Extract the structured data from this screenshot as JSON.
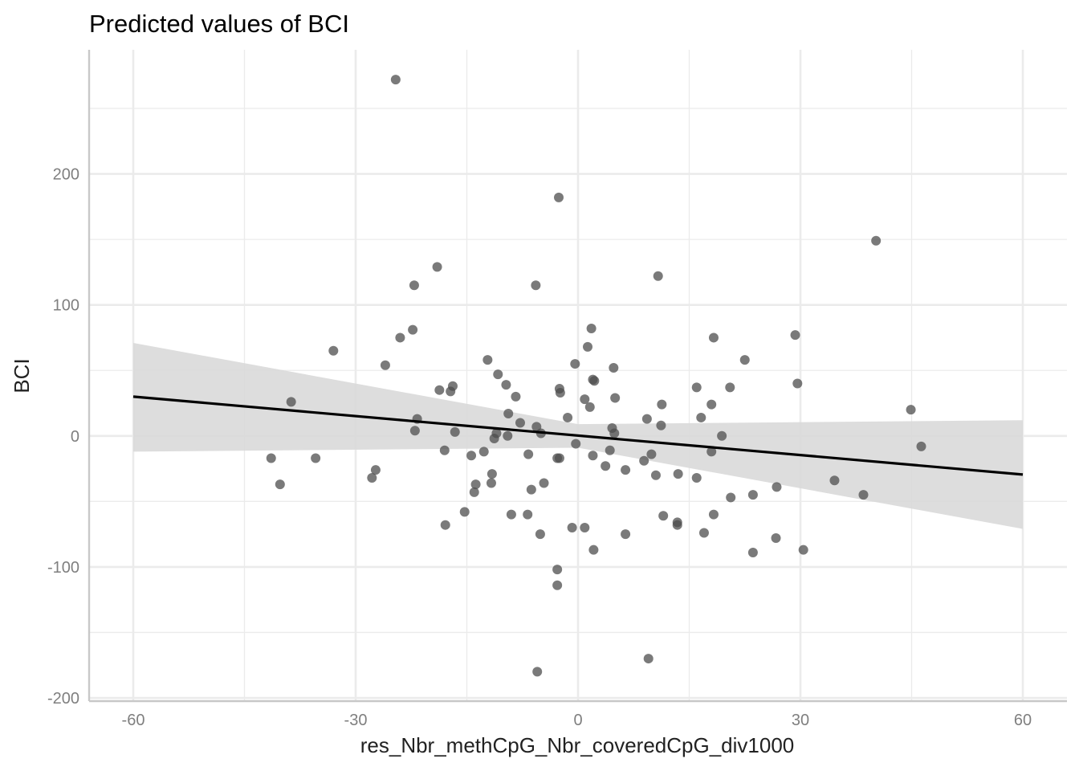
{
  "chart_data": {
    "type": "scatter",
    "title": "Predicted values of BCI",
    "xlabel": "res_Nbr_methCpG_Nbr_coveredCpG_div1000",
    "ylabel": "BCI",
    "xlim": [
      -60,
      60
    ],
    "ylim": [
      -200,
      285
    ],
    "x_ticks": [
      -60,
      -30,
      0,
      30,
      60
    ],
    "x_tick_labels": [
      "-60",
      "-30",
      "0",
      "30",
      "60"
    ],
    "y_ticks": [
      -200,
      -100,
      0,
      100,
      200
    ],
    "y_tick_labels": [
      "-200",
      "-100",
      "0",
      "100",
      "200"
    ],
    "grid": true,
    "legend": "none",
    "colors": {
      "point": "#4d4d4d",
      "line": "#000000",
      "ribbon": "#d9d9d9",
      "grid": "#ebebeb",
      "axis_text": "#7f7f7f",
      "title": "#000000"
    },
    "fit_line": {
      "x": [
        -60,
        60
      ],
      "y": [
        30,
        -29.5
      ]
    },
    "confidence_band": {
      "x": [
        -60,
        0,
        60
      ],
      "upper": [
        71,
        9,
        12
      ],
      "lower": [
        -12,
        -9,
        -71
      ]
    },
    "points": [
      [
        -24.6,
        272
      ],
      [
        -2.6,
        182
      ],
      [
        -19,
        129
      ],
      [
        -22.1,
        115
      ],
      [
        -5.7,
        115
      ],
      [
        10.8,
        122
      ],
      [
        40.2,
        149
      ],
      [
        -22.3,
        81
      ],
      [
        -24,
        75
      ],
      [
        1.8,
        82
      ],
      [
        18.3,
        75
      ],
      [
        29.3,
        77
      ],
      [
        -33,
        65
      ],
      [
        -26,
        54
      ],
      [
        -12.2,
        58
      ],
      [
        -10.8,
        47
      ],
      [
        -0.4,
        55
      ],
      [
        1.3,
        68
      ],
      [
        22.5,
        58
      ],
      [
        2.0,
        43
      ],
      [
        2.2,
        42
      ],
      [
        4.8,
        52
      ],
      [
        -18.7,
        35
      ],
      [
        -16.9,
        38
      ],
      [
        -17.2,
        34
      ],
      [
        -2.5,
        36
      ],
      [
        -2.4,
        33
      ],
      [
        -8.4,
        30
      ],
      [
        -9.7,
        39
      ],
      [
        0.9,
        28
      ],
      [
        1.6,
        22
      ],
      [
        5.0,
        29
      ],
      [
        11.3,
        24
      ],
      [
        16.0,
        37
      ],
      [
        18.0,
        24
      ],
      [
        20.5,
        37
      ],
      [
        29.6,
        40
      ],
      [
        -38.7,
        26
      ],
      [
        -21.7,
        13
      ],
      [
        -22,
        4
      ],
      [
        -16.6,
        3
      ],
      [
        -9.4,
        17
      ],
      [
        -7.8,
        10
      ],
      [
        -5.6,
        7
      ],
      [
        -5.0,
        2
      ],
      [
        -1.4,
        14
      ],
      [
        4.6,
        6
      ],
      [
        4.9,
        2
      ],
      [
        9.3,
        13
      ],
      [
        11.2,
        8
      ],
      [
        16.6,
        14
      ],
      [
        19.4,
        0
      ],
      [
        44.9,
        20
      ],
      [
        46.3,
        -8
      ],
      [
        -11,
        2
      ],
      [
        -11.3,
        -2
      ],
      [
        -9.5,
        0
      ],
      [
        -0.3,
        -6
      ],
      [
        -12.7,
        -12
      ],
      [
        -14.4,
        -15
      ],
      [
        -18,
        -11
      ],
      [
        -6.7,
        -14
      ],
      [
        -2.5,
        -17
      ],
      [
        -2.8,
        -17
      ],
      [
        2.0,
        -15
      ],
      [
        4.3,
        -11
      ],
      [
        9.9,
        -14
      ],
      [
        8.9,
        -19
      ],
      [
        6.4,
        -26
      ],
      [
        3.7,
        -23
      ],
      [
        10.5,
        -30
      ],
      [
        13.5,
        -29
      ],
      [
        16.0,
        -32
      ],
      [
        18.0,
        -12
      ],
      [
        -41.4,
        -17
      ],
      [
        -35.4,
        -17
      ],
      [
        -27.3,
        -26
      ],
      [
        -27.8,
        -32
      ],
      [
        -40.2,
        -37
      ],
      [
        -11.6,
        -29
      ],
      [
        -11.7,
        -36
      ],
      [
        -13.8,
        -37
      ],
      [
        -14,
        -43
      ],
      [
        -6.3,
        -41
      ],
      [
        -4.6,
        -36
      ],
      [
        -15.3,
        -58
      ],
      [
        -9.0,
        -60
      ],
      [
        -6.8,
        -60
      ],
      [
        -17.9,
        -68
      ],
      [
        -5.1,
        -75
      ],
      [
        -0.8,
        -70
      ],
      [
        0.9,
        -70
      ],
      [
        2.1,
        -87
      ],
      [
        6.4,
        -75
      ],
      [
        11.5,
        -61
      ],
      [
        13.4,
        -66
      ],
      [
        13.4,
        -68
      ],
      [
        17.0,
        -74
      ],
      [
        18.3,
        -60
      ],
      [
        20.6,
        -47
      ],
      [
        23.6,
        -45
      ],
      [
        26.8,
        -39
      ],
      [
        23.6,
        -89
      ],
      [
        26.7,
        -78
      ],
      [
        30.4,
        -87
      ],
      [
        34.6,
        -34
      ],
      [
        38.5,
        -45
      ],
      [
        -2.8,
        -102
      ],
      [
        -2.8,
        -114
      ],
      [
        -5.5,
        -180
      ],
      [
        9.5,
        -170
      ]
    ]
  }
}
